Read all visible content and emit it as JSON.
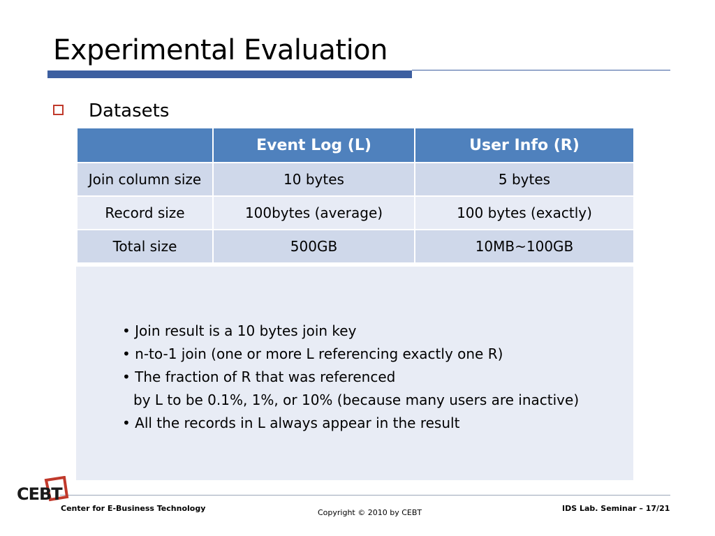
{
  "slide": {
    "title": "Experimental Evaluation",
    "section_label": "Datasets"
  },
  "table": {
    "headers": [
      "",
      "Event Log (L)",
      "User Info (R)"
    ],
    "rows": [
      [
        "Join column size",
        "10 bytes",
        "5 bytes"
      ],
      [
        "Record size",
        "100bytes (average)",
        "100 bytes (exactly)"
      ],
      [
        "Total size",
        "500GB",
        "10MB~100GB"
      ]
    ]
  },
  "notes": [
    "• Join result is a 10 bytes join key",
    "• n-to-1 join (one or more L referencing exactly one R)",
    "• The fraction of R that was referenced",
    "by L to be 0.1%, 1%, or 10% (because many users are inactive)",
    "• All the records in L always appear in the result"
  ],
  "footer": {
    "logo_text": "CEBT",
    "org": "Center for E-Business Technology",
    "copyright": "Copyright © 2010 by CEBT",
    "page": "IDS Lab. Seminar – 17/21"
  },
  "colors": {
    "accent": "#3d5fa0",
    "header_fill": "#4f81bd",
    "bullet": "#c0392b"
  }
}
